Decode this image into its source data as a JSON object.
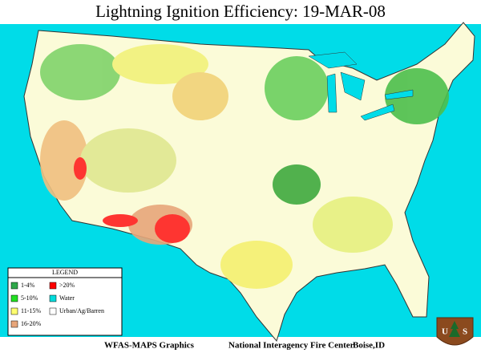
{
  "header": {
    "title": "Lightning Ignition Efficiency: 19-MAR-08"
  },
  "legend": {
    "title": "LEGEND",
    "items": [
      {
        "label": "1-4%",
        "color": "#2fa84a"
      },
      {
        "label": ">20%",
        "color": "#ff0000"
      },
      {
        "label": "5-10%",
        "color": "#22e022"
      },
      {
        "label": "Water",
        "color": "#00dcdc"
      },
      {
        "label": "11-15%",
        "color": "#ffff70"
      },
      {
        "label": "Urban/Ag/Barren",
        "color": "#ffffff"
      },
      {
        "label": "16-20%",
        "color": "#e8a67a"
      }
    ]
  },
  "footer": {
    "items": [
      "WFAS-MAPS Graphics",
      "National Interagency Fire Center",
      "Boise,ID"
    ]
  },
  "badge": {
    "letters": [
      "U",
      "S"
    ]
  }
}
